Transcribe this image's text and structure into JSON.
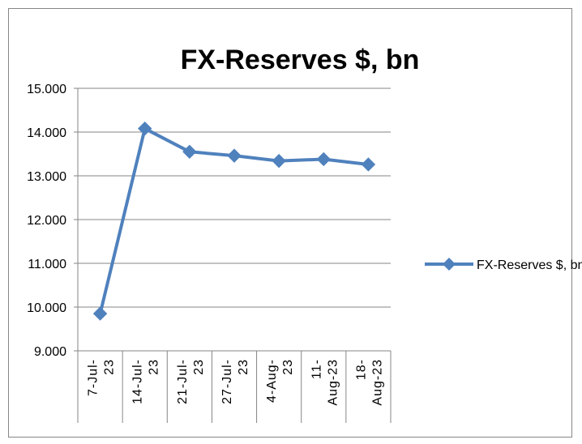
{
  "chart_data": {
    "type": "line",
    "title": "FX-Reserves $, bn",
    "categories": [
      [
        "7-Jul-",
        "23"
      ],
      [
        "14-Jul-",
        "23"
      ],
      [
        "21-Jul-",
        "23"
      ],
      [
        "27-Jul-",
        "23"
      ],
      [
        "4-Aug-",
        "23"
      ],
      [
        "11-",
        "Aug-23"
      ],
      [
        "18-",
        "Aug-23"
      ]
    ],
    "series": [
      {
        "name": "FX-Reserves $, bn",
        "values": [
          9.85,
          14.08,
          13.55,
          13.46,
          13.34,
          13.38,
          13.26
        ]
      }
    ],
    "ylim": [
      9.0,
      15.0
    ],
    "yticks": [
      "9.000",
      "10.000",
      "11.000",
      "12.000",
      "13.000",
      "14.000",
      "15.000"
    ],
    "grid": true,
    "legend_position": "right",
    "colors": {
      "line": "#4F81BD",
      "marker": "#4F81BD",
      "grid": "#868686",
      "axis": "#868686"
    }
  }
}
